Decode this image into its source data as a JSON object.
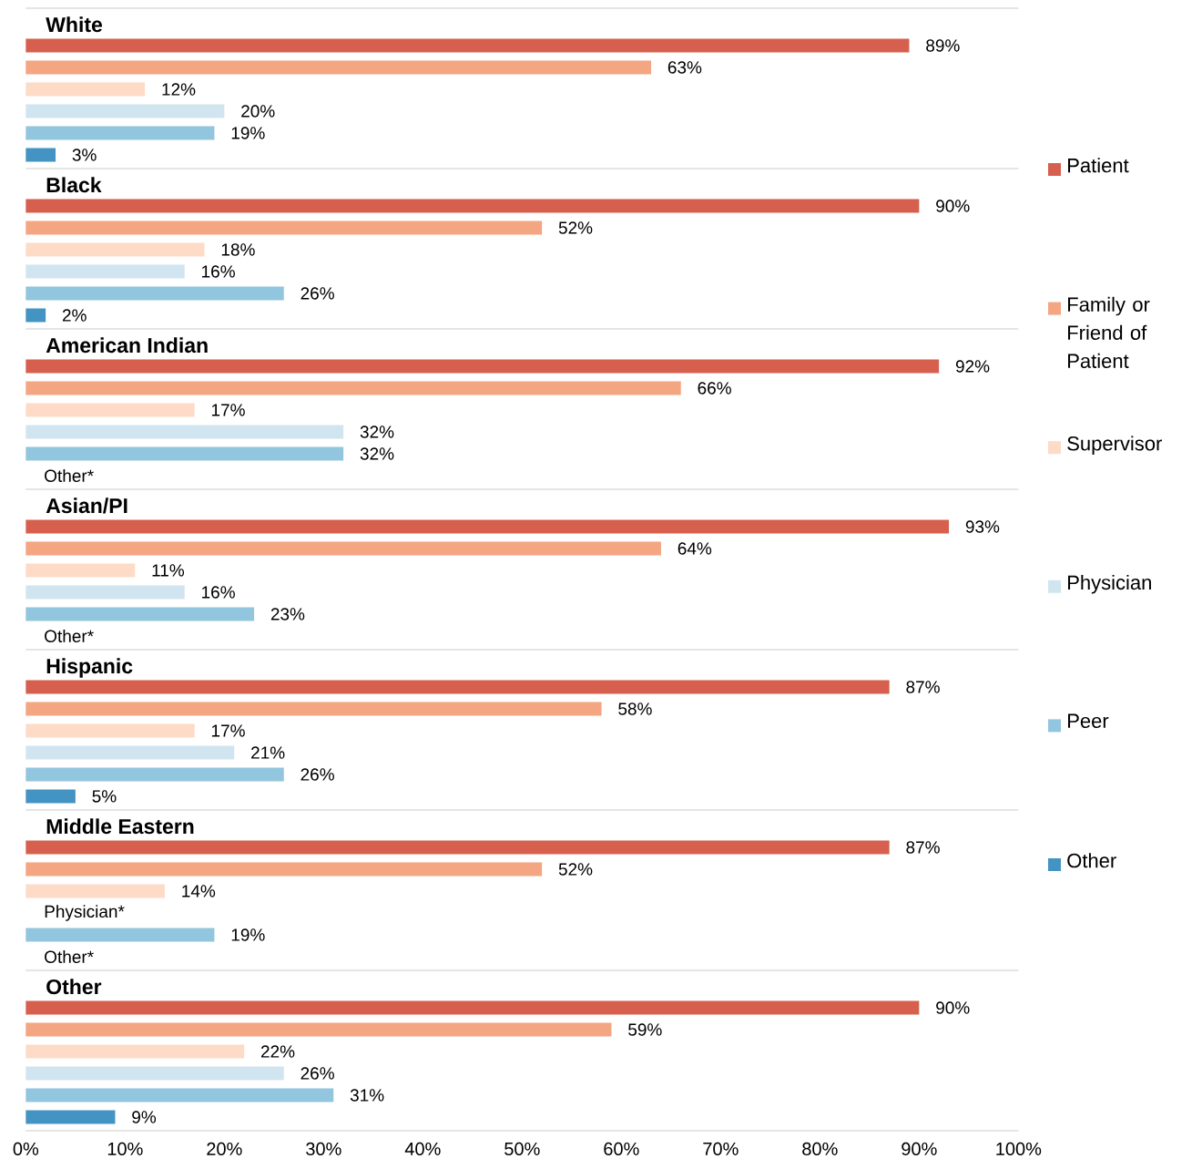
{
  "chart_data": {
    "type": "bar",
    "orientation": "horizontal",
    "categories": [
      "White",
      "Black",
      "American Indian",
      "Asian/PI",
      "Hispanic",
      "Middle Eastern",
      "Other"
    ],
    "series": [
      {
        "name": "Patient",
        "color": "#d6604d",
        "values": [
          89,
          90,
          92,
          93,
          87,
          87,
          90
        ],
        "value_labels": [
          "89%",
          "90%",
          "92%",
          "93%",
          "87%",
          "87%",
          "90%"
        ]
      },
      {
        "name": "Family or Friend of Patient",
        "color": "#f4a582",
        "values": [
          63,
          52,
          66,
          64,
          58,
          52,
          59
        ],
        "value_labels": [
          "63%",
          "52%",
          "66%",
          "64%",
          "58%",
          "52%",
          "59%"
        ]
      },
      {
        "name": "Supervisor",
        "color": "#fddbc7",
        "values": [
          12,
          18,
          17,
          11,
          17,
          14,
          22
        ],
        "value_labels": [
          "12%",
          "18%",
          "17%",
          "11%",
          "17%",
          "14%",
          "22%"
        ]
      },
      {
        "name": "Physician",
        "color": "#d1e5f0",
        "values": [
          20,
          16,
          32,
          16,
          21,
          null,
          26
        ],
        "value_labels": [
          "20%",
          "16%",
          "32%",
          "16%",
          "21%",
          null,
          "26%"
        ]
      },
      {
        "name": "Peer",
        "color": "#92c5de",
        "values": [
          19,
          26,
          32,
          23,
          26,
          19,
          31
        ],
        "value_labels": [
          "19%",
          "26%",
          "32%",
          "23%",
          "26%",
          "19%",
          "31%"
        ]
      },
      {
        "name": "Other",
        "color": "#4393c3",
        "values": [
          3,
          2,
          null,
          null,
          5,
          null,
          9
        ],
        "value_labels": [
          "3%",
          "2%",
          null,
          null,
          "5%",
          null,
          "9%"
        ]
      }
    ],
    "xlim": [
      0,
      100
    ],
    "xticks": [
      {
        "value": 0,
        "label": "0%"
      },
      {
        "value": 10,
        "label": "10%"
      },
      {
        "value": 20,
        "label": "20%"
      },
      {
        "value": 30,
        "label": "30%"
      },
      {
        "value": 40,
        "label": "40%"
      },
      {
        "value": 50,
        "label": "50%"
      },
      {
        "value": 60,
        "label": "60%"
      },
      {
        "value": 70,
        "label": "70%"
      },
      {
        "value": 80,
        "label": "80%"
      },
      {
        "value": 90,
        "label": "90%"
      },
      {
        "value": 100,
        "label": "100%"
      }
    ],
    "annotations": [
      "Other*",
      "Other*",
      "Physician*",
      "Other*"
    ],
    "legend": "right"
  }
}
